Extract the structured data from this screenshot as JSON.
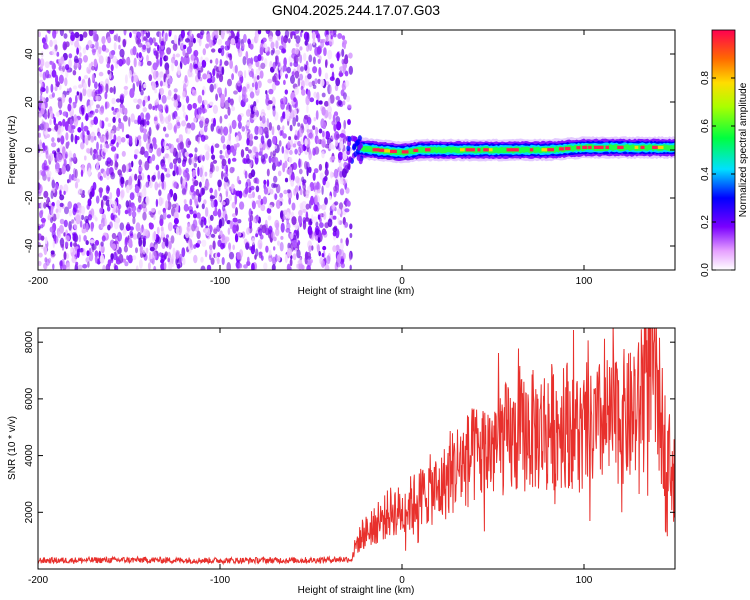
{
  "title": "GN04.2025.244.17.07.G03",
  "chart_data": [
    {
      "type": "heatmap",
      "xlabel": "Height of straight line (km)",
      "ylabel": "Frequency (Hz)",
      "xlim": [
        -200,
        150
      ],
      "ylim": [
        -50,
        50
      ],
      "xticks": [
        "-200",
        "-100",
        "0",
        "100"
      ],
      "yticks": [
        "40",
        "20",
        "0",
        "-20",
        "-40"
      ],
      "colorbar": {
        "label": "Normalized spectral amplitude",
        "range": [
          0,
          1
        ],
        "ticks": [
          "0.0",
          "0.2",
          "0.4",
          "0.6",
          "0.8"
        ]
      },
      "noise_region_x": [
        -200,
        -28
      ],
      "signal_line": {
        "x": [
          -25,
          -15,
          0,
          10,
          20,
          40,
          60,
          80,
          100,
          120,
          140,
          150
        ],
        "freq": [
          1,
          0,
          -1,
          0,
          0,
          0,
          0,
          0,
          1,
          1,
          1,
          1
        ]
      },
      "grid": false,
      "legend": "none"
    },
    {
      "type": "line",
      "xlabel": "Height of straight line (km)",
      "ylabel": "SNR (10 * v/v)",
      "xlim": [
        -200,
        150
      ],
      "ylim": [
        0,
        8500
      ],
      "xticks": [
        "-200",
        "-100",
        "0",
        "100"
      ],
      "yticks": [
        "8000",
        "6000",
        "4000",
        "2000"
      ],
      "series": [
        {
          "color": "#e8302c",
          "x": [
            -200,
            -150,
            -100,
            -50,
            -28,
            -25,
            -20,
            -15,
            -10,
            -5,
            0,
            5,
            10,
            15,
            20,
            25,
            30,
            35,
            40,
            45,
            50,
            55,
            60,
            65,
            70,
            75,
            80,
            85,
            90,
            95,
            100,
            105,
            110,
            115,
            120,
            125,
            130,
            135,
            140,
            145,
            150
          ],
          "y": [
            300,
            320,
            300,
            310,
            350,
            900,
            1300,
            1500,
            1800,
            2100,
            2000,
            2300,
            2500,
            2800,
            2700,
            3200,
            3600,
            3800,
            4000,
            4100,
            4300,
            4600,
            4500,
            4700,
            4900,
            4800,
            5100,
            5000,
            5200,
            5000,
            4600,
            4800,
            5200,
            5100,
            5400,
            5300,
            5600,
            8000,
            6200,
            4300,
            3200
          ]
        }
      ],
      "grid": false,
      "legend": "none"
    }
  ]
}
